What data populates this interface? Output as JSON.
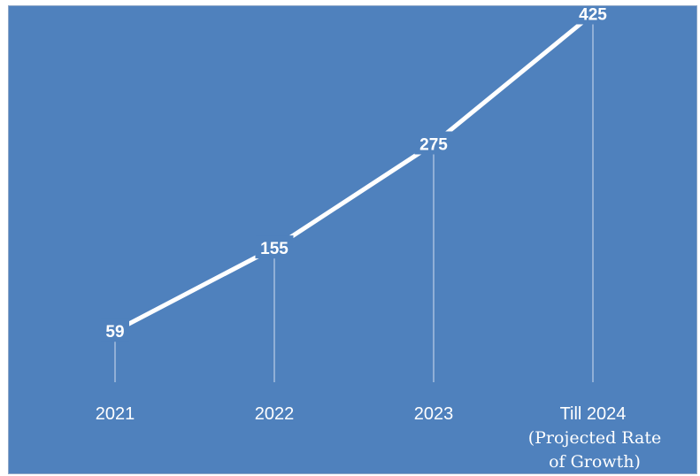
{
  "chart_data": {
    "type": "line",
    "title": "",
    "xlabel": "",
    "ylabel": "",
    "categories": [
      "2021",
      "2022",
      "2023",
      "Till 2024"
    ],
    "category_notes": [
      "",
      "",
      "",
      "(Projected Rate of Growth)"
    ],
    "category_note_lines": [
      [],
      [],
      [],
      [
        "(Projected Rate",
        "of Growth)"
      ]
    ],
    "series": [
      {
        "values": [
          59,
          155,
          275,
          425
        ]
      }
    ],
    "data_labels": [
      "59",
      "155",
      "275",
      "425"
    ],
    "ylim": [
      0,
      450
    ],
    "grid": false,
    "legend": "none",
    "drop_lines": true,
    "colors": {
      "background": "#4f81bd",
      "line": "#ffffff",
      "text": "#ffffff",
      "drop_line": "#c9d6ea"
    }
  }
}
